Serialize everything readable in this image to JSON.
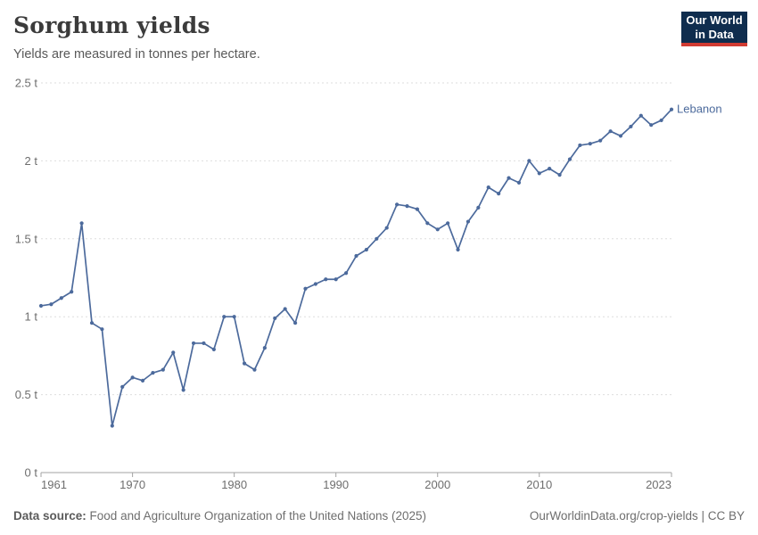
{
  "header": {
    "title": "Sorghum yields",
    "subtitle": "Yields are measured in tonnes per hectare.",
    "logo": {
      "line1": "Our World",
      "line2": "in Data",
      "bg_color": "#0f2d4e",
      "accent_color": "#d13b32"
    }
  },
  "chart_data": {
    "type": "line",
    "title": "Sorghum yields",
    "subtitle": "Yields are measured in tonnes per hectare.",
    "unit": "tonnes per hectare",
    "grid": "horizontal dashed",
    "legend_position": "end-of-line label",
    "xlim": [
      1961,
      2023
    ],
    "ylim": [
      0,
      2.5
    ],
    "x_ticks": [
      1961,
      1970,
      1980,
      1990,
      2000,
      2010,
      2023
    ],
    "y_ticks": [
      0,
      0.5,
      1,
      1.5,
      2,
      2.5
    ],
    "y_tick_labels": [
      "0 t",
      "0.5 t",
      "1 t",
      "1.5 t",
      "2 t",
      "2.5 t"
    ],
    "series": [
      {
        "name": "Lebanon",
        "color": "#4c6a9c",
        "x": [
          1961,
          1962,
          1963,
          1964,
          1965,
          1966,
          1967,
          1968,
          1969,
          1970,
          1971,
          1972,
          1973,
          1974,
          1975,
          1976,
          1977,
          1978,
          1979,
          1980,
          1981,
          1982,
          1983,
          1984,
          1985,
          1986,
          1987,
          1988,
          1989,
          1990,
          1991,
          1992,
          1993,
          1994,
          1995,
          1996,
          1997,
          1998,
          1999,
          2000,
          2001,
          2002,
          2003,
          2004,
          2005,
          2006,
          2007,
          2008,
          2009,
          2010,
          2011,
          2012,
          2013,
          2014,
          2015,
          2016,
          2017,
          2018,
          2019,
          2020,
          2021,
          2022,
          2023
        ],
        "values": [
          1.07,
          1.08,
          1.12,
          1.16,
          1.6,
          0.96,
          0.92,
          0.3,
          0.55,
          0.61,
          0.59,
          0.64,
          0.66,
          0.77,
          0.53,
          0.83,
          0.83,
          0.79,
          1.0,
          1.0,
          0.7,
          0.66,
          0.8,
          0.99,
          1.05,
          0.96,
          1.18,
          1.21,
          1.24,
          1.24,
          1.28,
          1.39,
          1.43,
          1.5,
          1.57,
          1.72,
          1.71,
          1.69,
          1.6,
          1.56,
          1.6,
          1.43,
          1.61,
          1.7,
          1.83,
          1.79,
          1.89,
          1.86,
          2.0,
          1.92,
          1.95,
          1.91,
          2.01,
          2.1,
          2.11,
          2.13,
          2.19,
          2.16,
          2.22,
          2.29,
          2.23,
          2.26,
          2.33
        ]
      }
    ],
    "colors": {
      "gridline": "#dedede",
      "axis_line": "#a3a3a3",
      "tick_label": "#6e6e6e",
      "series_label": "#4c6a9c"
    }
  },
  "footer": {
    "source_label": "Data source:",
    "source_text": "Food and Agriculture Organization of the United Nations (2025)",
    "credit": "OurWorldinData.org/crop-yields | CC BY"
  }
}
